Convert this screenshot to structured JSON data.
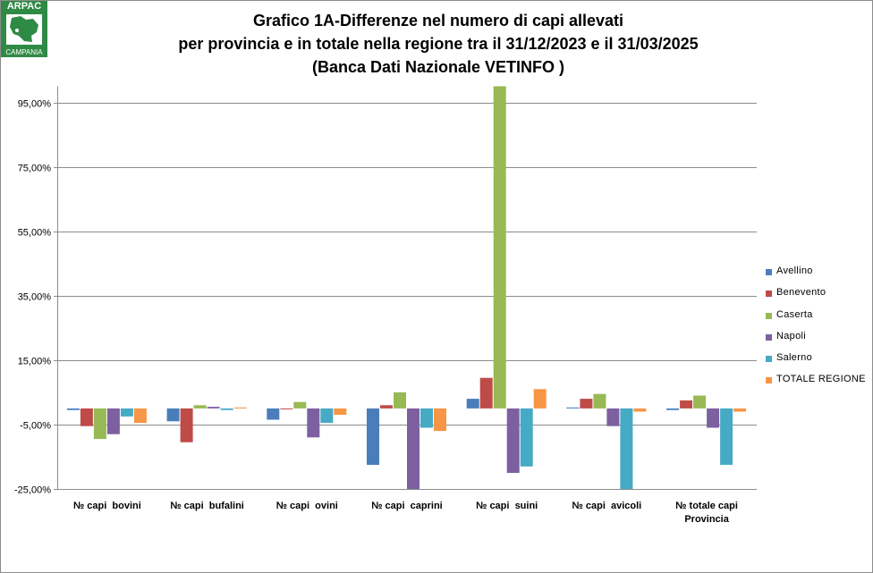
{
  "logo": {
    "top_text": "ARPAC",
    "bottom_text": "CAMPANIA"
  },
  "header": {
    "title_line1": "Grafico 1A-Differenze nel numero di capi allevati",
    "title_line2": "per provincia e in totale nella regione tra il 31/12/2023 e il 31/03/2025",
    "title_line3": "(Banca Dati Nazionale VETINFO )"
  },
  "chart_data": {
    "type": "bar",
    "title": "Grafico 1A-Differenze nel numero di capi allevati per provincia e in totale nella regione tra il 31/12/2023 e il 31/03/2025 (Banca Dati Nazionale VETINFO )",
    "xlabel": "",
    "ylabel": "",
    "ylim": [
      -25,
      100
    ],
    "yticks": [
      95,
      75,
      55,
      35,
      15,
      -5,
      -25
    ],
    "ytick_labels": [
      "95,00%",
      "75,00%",
      "55,00%",
      "35,00%",
      "15,00%",
      "-5,00%",
      "-25,00%"
    ],
    "grid": true,
    "legend_position": "right",
    "categories": [
      [
        "№ capi  bovini"
      ],
      [
        "№ capi  bufalini"
      ],
      [
        "№ capi  ovini"
      ],
      [
        "№ capi  caprini"
      ],
      [
        "№ capi  suini"
      ],
      [
        "№ capi  avicoli"
      ],
      [
        "№ totale capi",
        "Provincia"
      ]
    ],
    "series": [
      {
        "name": "Avellino",
        "color": "#4a7ebb",
        "values": [
          -0.5,
          -4,
          -3.5,
          -17.5,
          3,
          0.3,
          -0.5
        ]
      },
      {
        "name": "Benevento",
        "color": "#be4b48",
        "values": [
          -5.5,
          -10.5,
          0,
          1,
          9.5,
          3,
          2.5
        ]
      },
      {
        "name": "Caserta",
        "color": "#98b954",
        "values": [
          -9.5,
          1,
          2,
          5,
          100,
          4.5,
          4
        ]
      },
      {
        "name": "Napoli",
        "color": "#7d60a0",
        "values": [
          -8,
          0.5,
          -9,
          -25,
          -20,
          -5.5,
          -6
        ]
      },
      {
        "name": "Salerno",
        "color": "#46aac5",
        "values": [
          -2.5,
          -0.5,
          -4.5,
          -6,
          -18,
          -25,
          -17.5
        ]
      },
      {
        "name": "TOTALE REGIONE",
        "color": "#f79646",
        "values": [
          -4.5,
          0.3,
          -2,
          -7,
          6,
          -1,
          -1
        ]
      }
    ]
  }
}
